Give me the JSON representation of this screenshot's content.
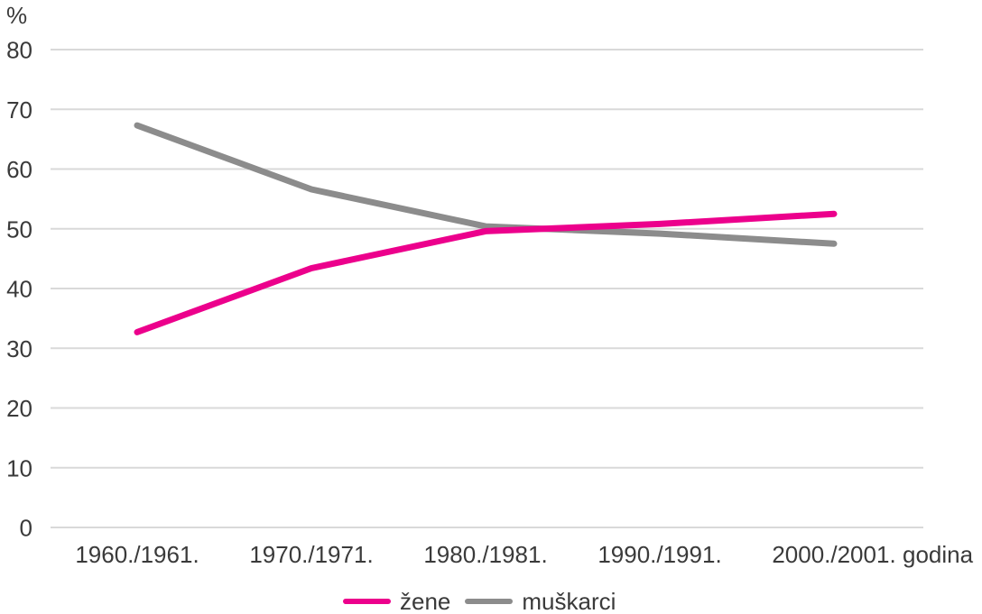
{
  "page": {
    "background_color": "#ffffff",
    "text_color": "#3a3a3a"
  },
  "chart_data": {
    "type": "line",
    "title": "",
    "ylabel": "%",
    "xlabel": "godina",
    "categories": [
      "1960./1961.",
      "1970./1971.",
      "1980./1981.",
      "1990./1991.",
      "2000./2001."
    ],
    "yticks": [
      80,
      70,
      60,
      50,
      40,
      30,
      20,
      10,
      0
    ],
    "ylim": [
      0,
      80
    ],
    "grid": true,
    "grid_color": "#d9d9d9",
    "legend_position": "bottom",
    "series": [
      {
        "name": "žene",
        "color": "#ec008c",
        "values": [
          32.7,
          43.4,
          49.6,
          50.8,
          52.5
        ]
      },
      {
        "name": "muškarci",
        "color": "#8c8c8c",
        "values": [
          67.3,
          56.6,
          50.4,
          49.2,
          47.5
        ]
      }
    ]
  }
}
